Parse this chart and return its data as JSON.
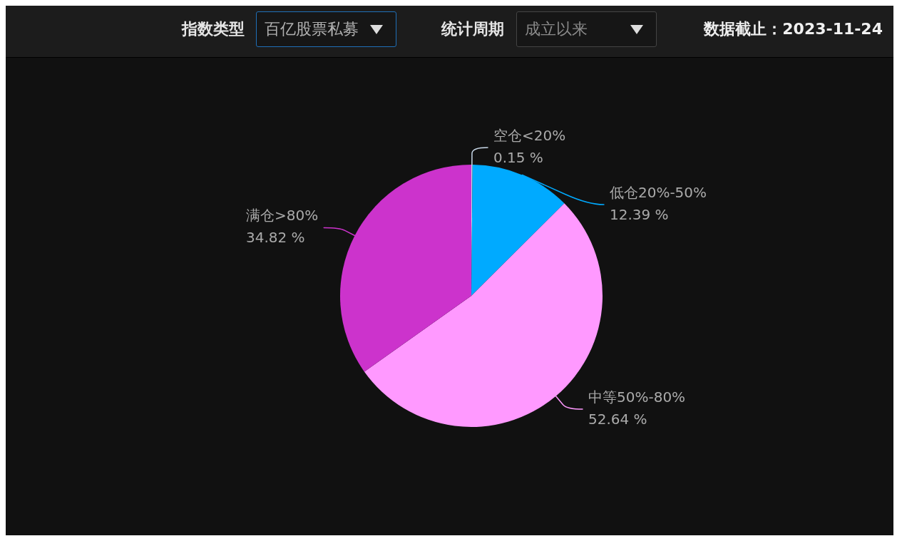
{
  "chart_data": {
    "type": "pie",
    "categories": [
      "空仓<20%",
      "低仓20%-50%",
      "中等50%-80%",
      "满仓>80%"
    ],
    "values": [
      0.15,
      12.39,
      52.64,
      34.82
    ],
    "colors": [
      "#c8d8e8",
      "#00aaff",
      "#ff99ff",
      "#cc33cc"
    ],
    "value_labels": [
      "0.15 %",
      "12.39 %",
      "52.64 %",
      "34.82 %"
    ],
    "annotations": [
      "指数类型",
      "百亿股票私募",
      "统计周期",
      "成立以来",
      "数据截止：2023-11-24"
    ],
    "legend": false
  }
}
